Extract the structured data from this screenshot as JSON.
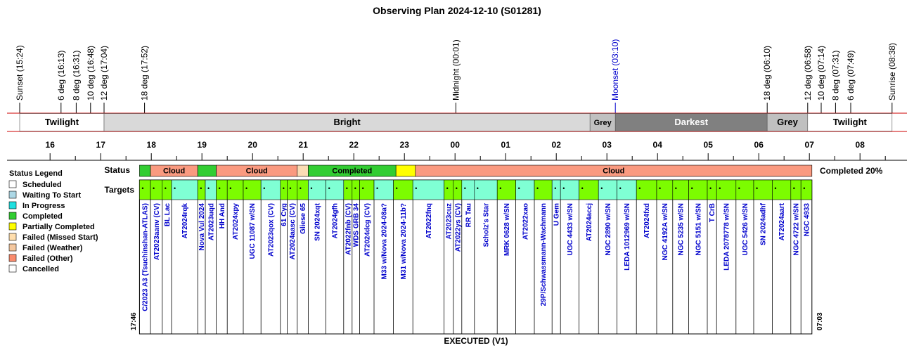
{
  "title": "Observing Plan 2024-12-10 (S01281)",
  "footer": "EXECUTED (V1)",
  "chart_data": {
    "type": "timeline",
    "x_axis": {
      "unit": "hour",
      "start": "15:24",
      "end": "08:38",
      "tick_labels": [
        "16",
        "17",
        "18",
        "19",
        "20",
        "21",
        "22",
        "23",
        "00",
        "01",
        "02",
        "03",
        "04",
        "05",
        "06",
        "07",
        "08"
      ]
    },
    "events": [
      {
        "label": "Sunset (15:24)",
        "time": "15:24",
        "color": "#000000"
      },
      {
        "label": "6 deg (16:13)",
        "time": "16:13",
        "color": "#000000"
      },
      {
        "label": "8 deg (16:31)",
        "time": "16:31",
        "color": "#000000"
      },
      {
        "label": "10 deg (16:48)",
        "time": "16:48",
        "color": "#000000"
      },
      {
        "label": "12 deg (17:04)",
        "time": "17:04",
        "color": "#000000"
      },
      {
        "label": "18 deg (17:52)",
        "time": "17:52",
        "color": "#000000"
      },
      {
        "label": "Midnight (00:01)",
        "time": "00:01",
        "color": "#000000"
      },
      {
        "label": "Moonset (03:10)",
        "time": "03:10",
        "color": "#0000cc"
      },
      {
        "label": "18 deg (06:10)",
        "time": "06:10",
        "color": "#000000"
      },
      {
        "label": "12 deg (06:58)",
        "time": "06:58",
        "color": "#000000"
      },
      {
        "label": "10 deg (07:14)",
        "time": "07:14",
        "color": "#000000"
      },
      {
        "label": "8 deg (07:31)",
        "time": "07:31",
        "color": "#000000"
      },
      {
        "label": "6 deg (07:49)",
        "time": "07:49",
        "color": "#000000"
      },
      {
        "label": "Sunrise (08:38)",
        "time": "08:38",
        "color": "#000000"
      }
    ],
    "sky_bands": [
      {
        "label": "Twilight",
        "start": "15:24",
        "end": "17:04",
        "color": "#ffffff",
        "text_color": "#000000"
      },
      {
        "label": "Bright",
        "start": "17:04",
        "end": "02:40",
        "color": "#d9d9d9",
        "text_color": "#000000"
      },
      {
        "label": "Grey",
        "start": "02:40",
        "end": "03:10",
        "color": "#c0c0c0",
        "text_color": "#000000"
      },
      {
        "label": "Darkest",
        "start": "03:10",
        "end": "06:10",
        "color": "#808080",
        "text_color": "#ffffff"
      },
      {
        "label": "Grey",
        "start": "06:10",
        "end": "06:58",
        "color": "#c0c0c0",
        "text_color": "#000000"
      },
      {
        "label": "Twilight",
        "start": "06:58",
        "end": "08:38",
        "color": "#ffffff",
        "text_color": "#000000"
      }
    ],
    "status_row_label": "Status",
    "targets_row_label": "Targets",
    "completion_label": "Completed 20%",
    "start_time_label": "17:46",
    "end_time_label": "07:03",
    "status_segments": [
      {
        "label": "",
        "start": "17:46",
        "end": "17:59",
        "status": "Completed"
      },
      {
        "label": "Cloud",
        "start": "17:59",
        "end": "18:55",
        "status": "Failed (Other)"
      },
      {
        "label": "",
        "start": "18:55",
        "end": "19:17",
        "status": "Completed"
      },
      {
        "label": "Cloud",
        "start": "19:17",
        "end": "20:53",
        "status": "Failed (Other)"
      },
      {
        "label": "",
        "start": "20:53",
        "end": "21:06",
        "status": "Failed (Weather)"
      },
      {
        "label": "Completed",
        "start": "21:06",
        "end": "22:50",
        "status": "Completed"
      },
      {
        "label": "",
        "start": "22:50",
        "end": "23:13",
        "status": "Partially Completed"
      },
      {
        "label": "Cloud",
        "start": "23:13",
        "end": "07:03",
        "status": "Failed (Other)"
      }
    ],
    "targets": [
      {
        "name": "C/2023 A3 (Tsuchinshan-ATLAS)",
        "start": "17:46",
        "end": "17:59",
        "color": "#7cfc00"
      },
      {
        "name": "AT2023aanv (CV)",
        "start": "17:59",
        "end": "18:13",
        "color": "#7cfc00"
      },
      {
        "name": "BL Lac",
        "start": "18:13",
        "end": "18:24",
        "color": "#7cfc00"
      },
      {
        "name": "AT2024rqk",
        "start": "18:24",
        "end": "18:55",
        "color": "#7fffd4"
      },
      {
        "name": "Nova Vul 2024",
        "start": "18:55",
        "end": "19:04",
        "color": "#7cfc00"
      },
      {
        "name": "AT2023uqd",
        "start": "19:04",
        "end": "19:17",
        "color": "#7fffd4"
      },
      {
        "name": "HH And",
        "start": "19:17",
        "end": "19:30",
        "color": "#7cfc00"
      },
      {
        "name": "AT2024xpy",
        "start": "19:30",
        "end": "19:49",
        "color": "#7cfc00"
      },
      {
        "name": "UGC 11087 w/SN",
        "start": "19:49",
        "end": "20:10",
        "color": "#7cfc00"
      },
      {
        "name": "AT2023qox (CV)",
        "start": "20:10",
        "end": "20:33",
        "color": "#7fffd4"
      },
      {
        "name": "61 Cyg",
        "start": "20:33",
        "end": "20:41",
        "color": "#7cfc00"
      },
      {
        "name": "AT2024aasc (CV)",
        "start": "20:41",
        "end": "20:53",
        "color": "#7cfc00"
      },
      {
        "name": "Gliese 65",
        "start": "20:53",
        "end": "21:06",
        "color": "#7cfc00"
      },
      {
        "name": "SN 2024xqt",
        "start": "21:06",
        "end": "21:27",
        "color": "#7fffd4"
      },
      {
        "name": "AT2024gfh",
        "start": "21:27",
        "end": "21:48",
        "color": "#7fffd4"
      },
      {
        "name": "AT2022fnb (CV)",
        "start": "21:48",
        "end": "21:58",
        "color": "#7cfc00"
      },
      {
        "name": "WDS GRB 34",
        "start": "21:58",
        "end": "22:07",
        "color": "#7cfc00"
      },
      {
        "name": "AT2024dcg (CV)",
        "start": "22:07",
        "end": "22:24",
        "color": "#7cfc00"
      },
      {
        "name": "M33 w/Nova 2024-08a?",
        "start": "22:24",
        "end": "22:47",
        "color": "#7fffd4"
      },
      {
        "name": "M31 w/Nova 2024-11b?",
        "start": "22:47",
        "end": "23:10",
        "color": "#7cfc00"
      },
      {
        "name": "AT2022fnq",
        "start": "23:10",
        "end": "23:47",
        "color": "#7fffd4"
      },
      {
        "name": "AT2023cuz",
        "start": "23:47",
        "end": "23:58",
        "color": "#7cfc00"
      },
      {
        "name": "AT2022ys (CV)",
        "start": "23:58",
        "end": "00:08",
        "color": "#7cfc00"
      },
      {
        "name": "RR Tau",
        "start": "00:08",
        "end": "00:23",
        "color": "#7fffd4"
      },
      {
        "name": "Scholz's Star",
        "start": "00:23",
        "end": "00:50",
        "color": "#7fffd4"
      },
      {
        "name": "MRK 0628 w/SN",
        "start": "00:50",
        "end": "01:12",
        "color": "#7cfc00"
      },
      {
        "name": "AT2022xao",
        "start": "01:12",
        "end": "01:34",
        "color": "#7fffd4"
      },
      {
        "name": "29P/Schwassmann-Wachmann",
        "start": "01:34",
        "end": "01:55",
        "color": "#7cfc00"
      },
      {
        "name": "U Gem",
        "start": "01:55",
        "end": "02:05",
        "color": "#7fffd4"
      },
      {
        "name": "UGC 4433 w/SN",
        "start": "02:05",
        "end": "02:27",
        "color": "#7fffd4"
      },
      {
        "name": "AT2024accj",
        "start": "02:27",
        "end": "02:50",
        "color": "#7cfc00"
      },
      {
        "name": "NGC 2890 w/SN",
        "start": "02:50",
        "end": "03:12",
        "color": "#7fffd4"
      },
      {
        "name": "LEDA 1012969 w/SN",
        "start": "03:12",
        "end": "03:35",
        "color": "#7fffd4"
      },
      {
        "name": "AT2024fxd",
        "start": "03:35",
        "end": "03:59",
        "color": "#7cfc00"
      },
      {
        "name": "NGC 4192A w/SN",
        "start": "03:59",
        "end": "04:18",
        "color": "#7cfc00"
      },
      {
        "name": "NGC 5235 w/SN",
        "start": "04:18",
        "end": "04:37",
        "color": "#7cfc00"
      },
      {
        "name": "NGC 5151 w/SN",
        "start": "04:37",
        "end": "04:59",
        "color": "#7cfc00"
      },
      {
        "name": "T CrB",
        "start": "04:59",
        "end": "05:10",
        "color": "#7cfc00"
      },
      {
        "name": "LEDA 2078778 w/SN",
        "start": "05:10",
        "end": "05:33",
        "color": "#7cfc00"
      },
      {
        "name": "UGC 5426 w/SN",
        "start": "05:33",
        "end": "05:54",
        "color": "#7cfc00"
      },
      {
        "name": "SN 2024adhf",
        "start": "05:54",
        "end": "06:16",
        "color": "#7cfc00"
      },
      {
        "name": "AT2024aart",
        "start": "06:16",
        "end": "06:38",
        "color": "#7cfc00"
      },
      {
        "name": "NGC 4722 w/SN",
        "start": "06:38",
        "end": "06:50",
        "color": "#7cfc00"
      },
      {
        "name": "NGC 4933",
        "start": "06:50",
        "end": "07:03",
        "color": "#7cfc00"
      }
    ],
    "legend": {
      "title": "Status Legend",
      "items": [
        {
          "label": "Scheduled",
          "color": "#ffffff"
        },
        {
          "label": "Waiting To Start",
          "color": "#add8e6"
        },
        {
          "label": "In Progress",
          "color": "#20e0e0"
        },
        {
          "label": "Completed",
          "color": "#32cd32"
        },
        {
          "label": "Partially Completed",
          "color": "#ffff00"
        },
        {
          "label": "Failed (Missed Start)",
          "color": "#ffdead"
        },
        {
          "label": "Failed (Weather)",
          "color": "#f4c8a0"
        },
        {
          "label": "Failed (Other)",
          "color": "#fa8c6e"
        },
        {
          "label": "Cancelled",
          "color": "#ffffff"
        }
      ]
    },
    "status_colors": {
      "Completed": "#32cd32",
      "Failed (Other)": "#fa9a80",
      "Failed (Weather)": "#fadcb4",
      "Partially Completed": "#ffff00"
    }
  }
}
